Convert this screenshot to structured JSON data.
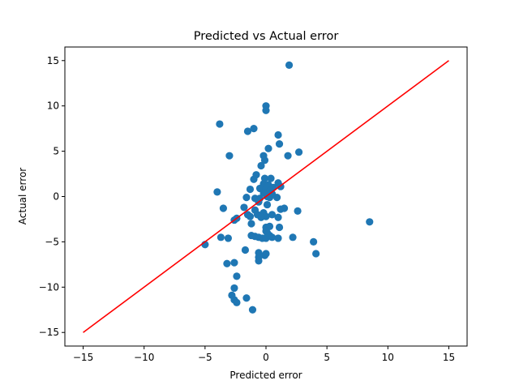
{
  "chart_data": {
    "type": "scatter",
    "title": "Predicted vs Actual error",
    "xlabel": "Predicted error",
    "ylabel": "Actual error",
    "xlim": [
      -16.5,
      16.5
    ],
    "ylim": [
      -16.5,
      16.5
    ],
    "xticks": [
      -15,
      -10,
      -5,
      0,
      5,
      10,
      15
    ],
    "yticks": [
      -15,
      -10,
      -5,
      0,
      5,
      10,
      15
    ],
    "tick_labels": [
      "−15",
      "−10",
      "−5",
      "0",
      "5",
      "10",
      "15"
    ],
    "grid": false,
    "colors": {
      "points": "#1f77b4",
      "line": "#ff0000"
    },
    "reference_line": {
      "x": [
        -15,
        15
      ],
      "y": [
        -15,
        15
      ]
    },
    "points": [
      [
        1.9,
        14.5
      ],
      [
        0.0,
        10.0
      ],
      [
        0.0,
        9.5
      ],
      [
        -3.8,
        8.0
      ],
      [
        -1.0,
        7.5
      ],
      [
        -1.5,
        7.2
      ],
      [
        1.0,
        6.8
      ],
      [
        1.1,
        5.8
      ],
      [
        0.2,
        5.3
      ],
      [
        2.7,
        4.9
      ],
      [
        -3.0,
        4.5
      ],
      [
        -0.2,
        4.5
      ],
      [
        1.8,
        4.5
      ],
      [
        -0.1,
        4.0
      ],
      [
        -0.4,
        3.4
      ],
      [
        -0.8,
        2.4
      ],
      [
        -1.0,
        1.9
      ],
      [
        -0.1,
        2.0
      ],
      [
        0.4,
        2.0
      ],
      [
        -0.2,
        1.4
      ],
      [
        0.2,
        1.3
      ],
      [
        0.6,
        1.0
      ],
      [
        1.0,
        1.5
      ],
      [
        1.2,
        1.1
      ],
      [
        -0.5,
        0.9
      ],
      [
        0.0,
        0.8
      ],
      [
        0.3,
        0.6
      ],
      [
        -1.3,
        0.8
      ],
      [
        -0.2,
        0.4
      ],
      [
        0.5,
        0.3
      ],
      [
        -4.0,
        0.5
      ],
      [
        0.1,
        0.0
      ],
      [
        -0.9,
        -0.2
      ],
      [
        -0.5,
        -0.2
      ],
      [
        -1.6,
        -0.1
      ],
      [
        0.3,
        -0.1
      ],
      [
        0.9,
        -0.1
      ],
      [
        -0.6,
        -0.6
      ],
      [
        0.1,
        -0.9
      ],
      [
        -1.8,
        -1.2
      ],
      [
        -3.5,
        -1.3
      ],
      [
        1.2,
        -1.4
      ],
      [
        1.5,
        -1.3
      ],
      [
        2.6,
        -1.6
      ],
      [
        -1.5,
        -2.0
      ],
      [
        -0.9,
        -1.5
      ],
      [
        -1.3,
        -2.2
      ],
      [
        -0.7,
        -2.0
      ],
      [
        -0.2,
        -1.8
      ],
      [
        0.0,
        -2.2
      ],
      [
        0.5,
        -2.0
      ],
      [
        1.0,
        -2.3
      ],
      [
        -0.4,
        -2.3
      ],
      [
        -2.6,
        -2.6
      ],
      [
        -2.4,
        -2.4
      ],
      [
        -1.2,
        -3.0
      ],
      [
        0.0,
        -3.4
      ],
      [
        0.3,
        -3.3
      ],
      [
        1.1,
        -3.4
      ],
      [
        8.5,
        -2.8
      ],
      [
        0.0,
        -3.8
      ],
      [
        0.1,
        -4.0
      ],
      [
        -1.2,
        -4.3
      ],
      [
        -0.9,
        -4.4
      ],
      [
        -0.6,
        -4.5
      ],
      [
        -0.3,
        -4.6
      ],
      [
        0.0,
        -4.6
      ],
      [
        0.3,
        -4.3
      ],
      [
        0.5,
        -4.5
      ],
      [
        1.0,
        -4.6
      ],
      [
        2.2,
        -4.5
      ],
      [
        -3.7,
        -4.5
      ],
      [
        -3.1,
        -4.6
      ],
      [
        -5.0,
        -5.3
      ],
      [
        3.9,
        -5.0
      ],
      [
        4.1,
        -6.3
      ],
      [
        -1.7,
        -5.9
      ],
      [
        -0.6,
        -6.2
      ],
      [
        -0.1,
        -6.5
      ],
      [
        0.0,
        -6.3
      ],
      [
        -0.6,
        -6.7
      ],
      [
        -0.6,
        -7.1
      ],
      [
        -3.2,
        -7.4
      ],
      [
        -2.6,
        -7.3
      ],
      [
        -2.4,
        -8.8
      ],
      [
        -2.6,
        -10.1
      ],
      [
        -2.8,
        -10.9
      ],
      [
        -2.6,
        -11.4
      ],
      [
        -2.4,
        -11.7
      ],
      [
        -1.6,
        -11.2
      ],
      [
        -1.1,
        -12.5
      ]
    ]
  }
}
